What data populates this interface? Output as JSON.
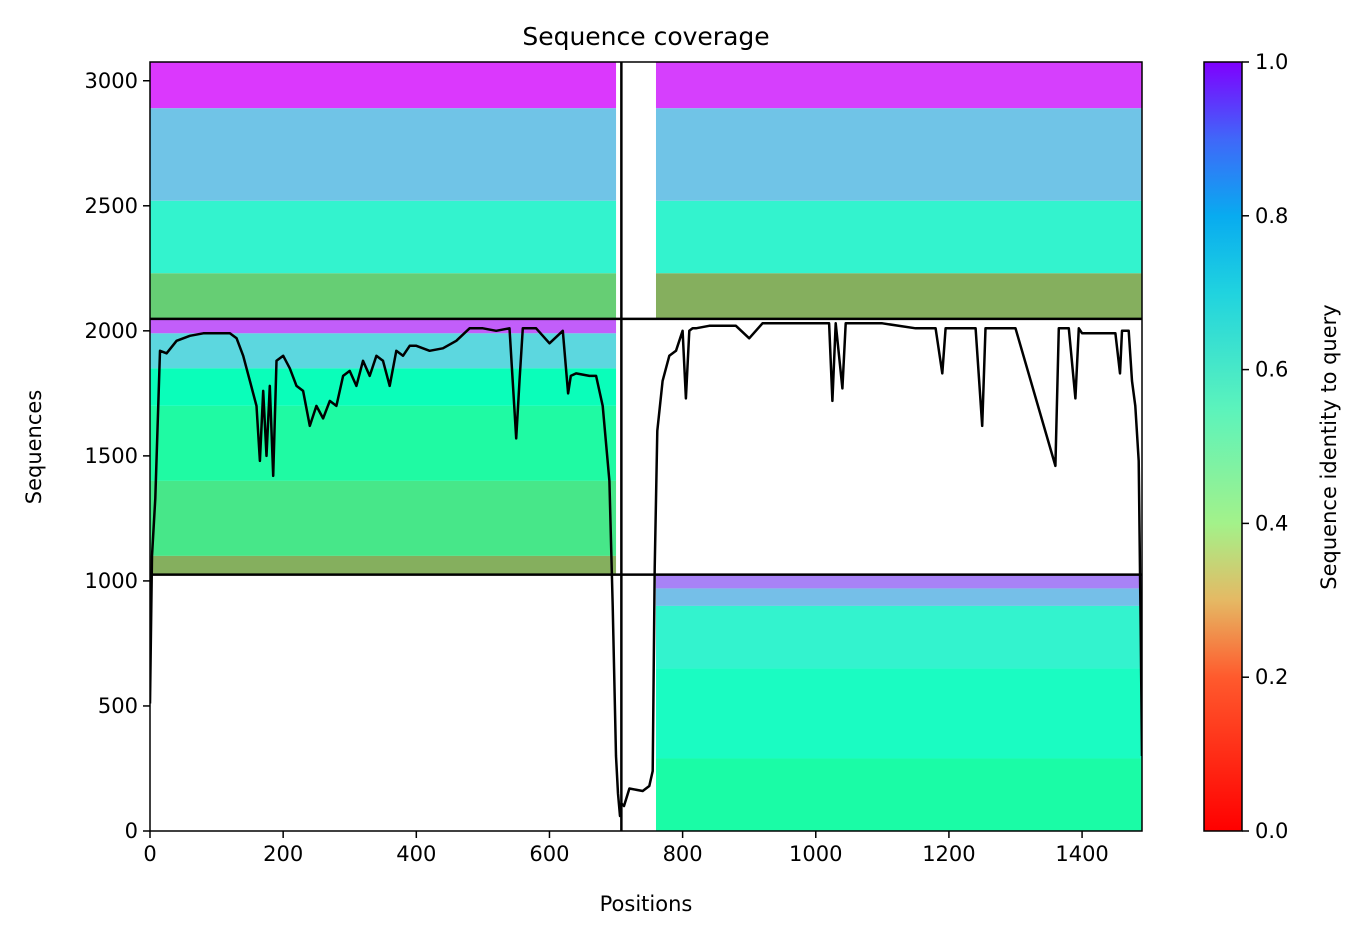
{
  "chart_data": {
    "type": "heatmap",
    "title": "Sequence coverage",
    "xlabel": "Positions",
    "ylabel": "Sequences",
    "colorbar_label": "Sequence identity to query",
    "colormap": "rainbow_r",
    "xlim": [
      0,
      1490
    ],
    "ylim": [
      0,
      3075
    ],
    "x_ticks": [
      0,
      200,
      400,
      600,
      800,
      1000,
      1200,
      1400
    ],
    "y_ticks": [
      0,
      500,
      1000,
      1500,
      2000,
      2500,
      3000
    ],
    "colorbar_ticks": [
      "0.0",
      "0.2",
      "0.4",
      "0.6",
      "0.8",
      "1.0"
    ],
    "colorbar_range": [
      0,
      1
    ],
    "block_divider_positions": [
      708
    ],
    "block_divider_sequences": [
      1025,
      2048
    ],
    "blocks": [
      {
        "name": "shared-top-left",
        "x": [
          0,
          700
        ],
        "y": [
          2048,
          3075
        ],
        "identity_bands": [
          [
            3075,
            2890,
            0.93
          ],
          [
            2890,
            2520,
            0.72
          ],
          [
            2520,
            2230,
            0.6
          ],
          [
            2230,
            2048,
            0.3
          ]
        ]
      },
      {
        "name": "shared-top-right",
        "x": [
          760,
          1490
        ],
        "y": [
          2048,
          3075
        ],
        "identity_bands": [
          [
            3075,
            2890,
            0.92
          ],
          [
            2890,
            2520,
            0.72
          ],
          [
            2520,
            2230,
            0.6
          ],
          [
            2230,
            2048,
            0.24
          ]
        ]
      },
      {
        "name": "chain-A",
        "x": [
          0,
          700
        ],
        "y": [
          1025,
          2048
        ],
        "identity_bands": [
          [
            2048,
            1990,
            0.88
          ],
          [
            1990,
            1850,
            0.68
          ],
          [
            1850,
            1700,
            0.52
          ],
          [
            1700,
            1400,
            0.44
          ],
          [
            1400,
            1100,
            0.36
          ],
          [
            1100,
            1025,
            0.24
          ]
        ]
      },
      {
        "name": "chain-B",
        "x": [
          760,
          1490
        ],
        "y": [
          0,
          1025
        ],
        "identity_bands": [
          [
            1025,
            970,
            0.83
          ],
          [
            970,
            900,
            0.73
          ],
          [
            900,
            650,
            0.6
          ],
          [
            650,
            290,
            0.55
          ],
          [
            290,
            0,
            0.45
          ]
        ]
      }
    ],
    "coverage_line": {
      "x": [
        0,
        3,
        8,
        15,
        25,
        40,
        60,
        80,
        100,
        120,
        130,
        140,
        150,
        155,
        160,
        165,
        170,
        175,
        180,
        185,
        190,
        200,
        210,
        220,
        230,
        240,
        250,
        260,
        270,
        280,
        290,
        300,
        310,
        320,
        330,
        340,
        350,
        360,
        370,
        380,
        390,
        400,
        420,
        440,
        460,
        480,
        500,
        520,
        540,
        550,
        555,
        560,
        570,
        580,
        600,
        620,
        628,
        632,
        640,
        660,
        670,
        680,
        690,
        695,
        700,
        703,
        706,
        708,
        712,
        720,
        740,
        750,
        755,
        758,
        762,
        770,
        780,
        790,
        800,
        805,
        810,
        815,
        820,
        840,
        880,
        900,
        920,
        1000,
        1020,
        1025,
        1030,
        1040,
        1045,
        1050,
        1060,
        1100,
        1150,
        1180,
        1190,
        1195,
        1200,
        1240,
        1250,
        1255,
        1260,
        1300,
        1360,
        1365,
        1370,
        1380,
        1390,
        1395,
        1400,
        1420,
        1450,
        1457,
        1460,
        1470,
        1475,
        1480,
        1485,
        1488,
        1490
      ],
      "y": [
        510,
        1100,
        1330,
        1920,
        1910,
        1960,
        1980,
        1990,
        1990,
        1990,
        1970,
        1900,
        1800,
        1750,
        1700,
        1480,
        1760,
        1500,
        1780,
        1420,
        1880,
        1900,
        1850,
        1780,
        1760,
        1620,
        1700,
        1650,
        1720,
        1700,
        1820,
        1840,
        1780,
        1880,
        1820,
        1900,
        1880,
        1780,
        1920,
        1900,
        1940,
        1940,
        1920,
        1930,
        1960,
        2010,
        2010,
        2000,
        2010,
        1570,
        1800,
        2010,
        2010,
        2010,
        1950,
        2000,
        1750,
        1820,
        1830,
        1820,
        1820,
        1700,
        1400,
        900,
        300,
        150,
        60,
        110,
        100,
        170,
        160,
        180,
        240,
        1050,
        1600,
        1800,
        1900,
        1920,
        2000,
        1730,
        2000,
        2010,
        2010,
        2020,
        2020,
        1970,
        2030,
        2030,
        2030,
        1720,
        2030,
        1770,
        2030,
        2030,
        2030,
        2030,
        2010,
        2010,
        1830,
        2010,
        2010,
        2010,
        1620,
        2010,
        2010,
        2010,
        1460,
        2010,
        2010,
        2010,
        1730,
        2010,
        1990,
        1990,
        1990,
        1830,
        2000,
        2000,
        1800,
        1700,
        1480,
        800,
        300
      ]
    }
  }
}
